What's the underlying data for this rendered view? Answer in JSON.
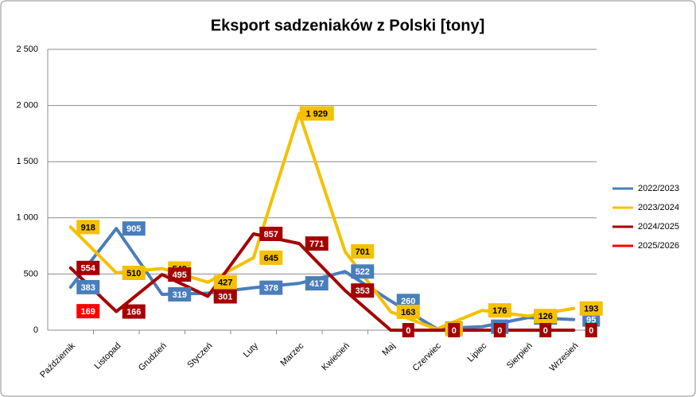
{
  "chart_data": {
    "type": "line",
    "title": "Eksport sadzeniaków z Polski [tony]",
    "categories": [
      "Październik",
      "Listopad",
      "Grudzień",
      "Styczeń",
      "Luty",
      "Marzec",
      "Kwiecień",
      "Maj",
      "Czerwiec",
      "Lipiec",
      "Sierpień",
      "Wrzesień"
    ],
    "series": [
      {
        "name": "2022/2023",
        "color": "#4a7ebb",
        "values": [
          383,
          905,
          319,
          329,
          378,
          417,
          522,
          260,
          14,
          31,
          112,
          95
        ]
      },
      {
        "name": "2023/2024",
        "color": "#f5c000",
        "values": [
          918,
          510,
          549,
          427,
          645,
          1929,
          701,
          163,
          10,
          176,
          126,
          193
        ],
        "value_labels": [
          "918",
          "510",
          "549",
          "427",
          "645",
          "1 929",
          "701",
          "163",
          "10",
          "176",
          "126",
          "193"
        ]
      },
      {
        "name": "2024/2025",
        "color": "#a50000",
        "values": [
          554,
          166,
          495,
          301,
          857,
          771,
          353,
          0,
          0,
          0,
          0,
          0
        ]
      },
      {
        "name": "2025/2026",
        "color": "#ff0000",
        "values": [
          169,
          null,
          null,
          null,
          null,
          null,
          null,
          null,
          null,
          null,
          null,
          null
        ]
      }
    ],
    "ylim": [
      0,
      2500
    ],
    "yticks": [
      0,
      500,
      {
        "value": 1000,
        "label": "1 000"
      },
      {
        "value": 1500,
        "label": "1 500"
      },
      {
        "value": 2000,
        "label": "2 000"
      },
      {
        "value": 2500,
        "label": "2 500"
      }
    ],
    "grid": true,
    "legend": "right"
  }
}
